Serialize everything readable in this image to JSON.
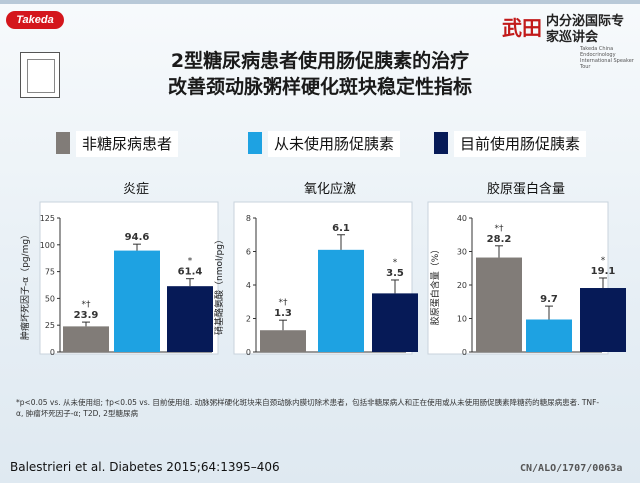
{
  "header": {
    "left_logo_text": "Takeda",
    "right_logo_main": "武田",
    "right_logo_sub": "内分泌国际专家巡讲会",
    "right_logo_en": "Takeda China Endocrinology International Speaker Tour"
  },
  "title": {
    "line1": "2型糖尿病患者使用肠促胰素的治疗",
    "line2": "改善颈动脉粥样硬化斑块稳定性指标"
  },
  "legend": [
    {
      "label": "非糖尿病患者",
      "color": "#817c78"
    },
    {
      "label": "从未使用肠促胰素",
      "color": "#1ea2e2"
    },
    {
      "label": "目前使用肠促胰素",
      "color": "#061a57"
    }
  ],
  "chart_data": [
    {
      "type": "bar",
      "title": "炎症",
      "ylabel": "肿瘤坏死因子-α（pg/mg）",
      "ylim": [
        0,
        125
      ],
      "ticks": [
        0,
        25,
        50,
        75,
        100,
        125
      ],
      "tick_labels": [
        "0",
        "25",
        "50",
        "75",
        "100",
        "125"
      ],
      "values": [
        23.9,
        94.6,
        61.4
      ],
      "errors": [
        4,
        6,
        7
      ],
      "value_labels": [
        "23.9",
        "94.6",
        "61.4"
      ],
      "markers": [
        "*†",
        "",
        "*"
      ]
    },
    {
      "type": "bar",
      "title": "氧化应激",
      "ylabel": "硝基酪氨酸（nmol/pg）",
      "ylim": [
        0,
        8
      ],
      "ticks": [
        0,
        2,
        4,
        6,
        8
      ],
      "tick_labels": [
        "0",
        "2",
        "4",
        "6",
        "8"
      ],
      "values": [
        1.3,
        6.1,
        3.5
      ],
      "errors": [
        0.6,
        0.9,
        0.8
      ],
      "value_labels": [
        "1.3",
        "6.1",
        "3.5"
      ],
      "markers": [
        "*†",
        "",
        "*"
      ]
    },
    {
      "type": "bar",
      "title": "胶原蛋白含量",
      "ylabel": "胶原蛋白含量（%）",
      "ylim": [
        0,
        40
      ],
      "ticks": [
        0,
        10,
        20,
        30,
        40
      ],
      "tick_labels": [
        "0",
        "10",
        "20",
        "30",
        "40"
      ],
      "values": [
        28.2,
        9.7,
        19.1
      ],
      "errors": [
        3.5,
        4,
        3
      ],
      "value_labels": [
        "28.2",
        "9.7",
        "19.1"
      ],
      "markers": [
        "*†",
        "",
        "*"
      ]
    }
  ],
  "footnote": "*p<0.05 vs. 从未使用组; †p<0.05 vs. 目前使用组. 动脉粥样硬化斑块来自颈动脉内膜切除术患者，包括非糖尿病人和正在使用或从未使用肠促胰素降糖药的糖尿病患者. TNF-α, 肿瘤坏死因子-α; T2D, 2型糖尿病",
  "citation": "Balestrieri  et al. Diabetes  2015;64:1395–406",
  "code": "CN/ALO/1707/0063a"
}
